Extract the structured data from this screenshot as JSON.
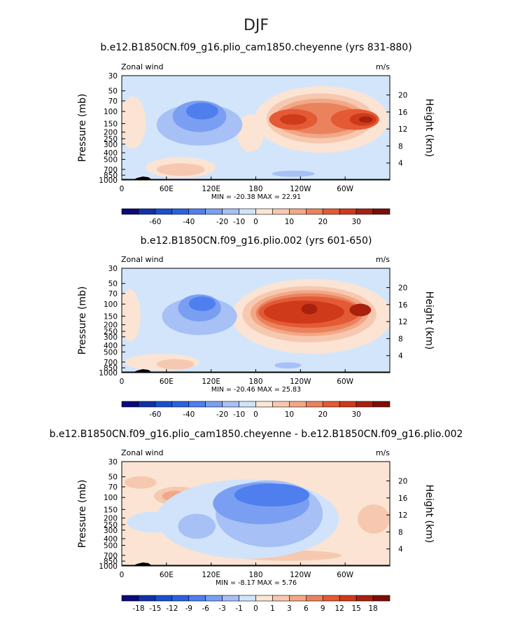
{
  "figure": {
    "season_title": "DJF"
  },
  "chart_data": [
    {
      "type": "heatmap",
      "title": "b.e12.B1850CN.f09_g16.plio_cam1850.cheyenne (yrs 831-880)",
      "variable_label": "Zonal wind",
      "units_label": "m/s",
      "ylabel": "Pressure (mb)",
      "y2label": "Height (km)",
      "x_ticks": [
        "0",
        "60E",
        "120E",
        "180",
        "120W",
        "60W"
      ],
      "x_tick_lon": [
        0,
        60,
        120,
        180,
        240,
        300
      ],
      "xlim": [
        0,
        360
      ],
      "y_ticks": [
        "30",
        "50",
        "70",
        "100",
        "150",
        "200",
        "250",
        "300",
        "400",
        "500",
        "700",
        "850",
        "1000"
      ],
      "y_tick_p": [
        30,
        50,
        70,
        100,
        150,
        200,
        250,
        300,
        400,
        500,
        700,
        850,
        1000
      ],
      "ylim_mb": [
        1000,
        30
      ],
      "y_log": true,
      "y2_ticks": [
        "20",
        "16",
        "12",
        "8",
        "4"
      ],
      "y2_tick_km": [
        20,
        16,
        12,
        8,
        4
      ],
      "min_max_text": "MIN =  -20.38   MAX =   22.91",
      "colorbar_ticks": [
        "-60",
        "-40",
        "-20",
        "-10",
        "0",
        "10",
        "20",
        "30"
      ],
      "levels": [
        -70,
        -60,
        -50,
        -40,
        -30,
        -20,
        -15,
        -10,
        -5,
        0,
        5,
        10,
        15,
        20,
        25,
        30,
        35
      ]
    },
    {
      "type": "heatmap",
      "title": "b.e12.B1850CN.f09_g16.plio.002 (yrs 601-650)",
      "variable_label": "Zonal wind",
      "units_label": "m/s",
      "ylabel": "Pressure (mb)",
      "y2label": "Height (km)",
      "x_ticks": [
        "0",
        "60E",
        "120E",
        "180",
        "120W",
        "60W"
      ],
      "x_tick_lon": [
        0,
        60,
        120,
        180,
        240,
        300
      ],
      "xlim": [
        0,
        360
      ],
      "y_ticks": [
        "30",
        "50",
        "70",
        "100",
        "150",
        "200",
        "250",
        "300",
        "400",
        "500",
        "700",
        "850",
        "1000"
      ],
      "y_tick_p": [
        30,
        50,
        70,
        100,
        150,
        200,
        250,
        300,
        400,
        500,
        700,
        850,
        1000
      ],
      "ylim_mb": [
        1000,
        30
      ],
      "y_log": true,
      "y2_ticks": [
        "20",
        "16",
        "12",
        "8",
        "4"
      ],
      "y2_tick_km": [
        20,
        16,
        12,
        8,
        4
      ],
      "min_max_text": "MIN =  -20.46   MAX =   25.83",
      "colorbar_ticks": [
        "-60",
        "-40",
        "-20",
        "-10",
        "0",
        "10",
        "20",
        "30"
      ],
      "levels": [
        -70,
        -60,
        -50,
        -40,
        -30,
        -20,
        -15,
        -10,
        -5,
        0,
        5,
        10,
        15,
        20,
        25,
        30,
        35
      ]
    },
    {
      "type": "heatmap",
      "title": "b.e12.B1850CN.f09_g16.plio_cam1850.cheyenne - b.e12.B1850CN.f09_g16.plio.002",
      "variable_label": "Zonal wind",
      "units_label": "m/s",
      "ylabel": "Pressure (mb)",
      "y2label": "Height (km)",
      "x_ticks": [
        "0",
        "60E",
        "120E",
        "180",
        "120W",
        "60W"
      ],
      "x_tick_lon": [
        0,
        60,
        120,
        180,
        240,
        300
      ],
      "xlim": [
        0,
        360
      ],
      "y_ticks": [
        "30",
        "50",
        "70",
        "100",
        "150",
        "200",
        "250",
        "300",
        "400",
        "500",
        "700",
        "850",
        "1000"
      ],
      "y_tick_p": [
        30,
        50,
        70,
        100,
        150,
        200,
        250,
        300,
        400,
        500,
        700,
        850,
        1000
      ],
      "ylim_mb": [
        1000,
        30
      ],
      "y_log": true,
      "y2_ticks": [
        "20",
        "16",
        "12",
        "8",
        "4"
      ],
      "y2_tick_km": [
        20,
        16,
        12,
        8,
        4
      ],
      "min_max_text": "MIN =    -8.17   MAX =     5.76",
      "colorbar_ticks": [
        "-18",
        "-15",
        "-12",
        "-9",
        "-6",
        "-3",
        "-1",
        "0",
        "1",
        "3",
        "6",
        "9",
        "12",
        "15",
        "18"
      ],
      "levels": [
        -21,
        -18,
        -15,
        -12,
        -9,
        -6,
        -3,
        -1,
        0,
        1,
        3,
        6,
        9,
        12,
        15,
        18,
        21
      ]
    }
  ],
  "colors": {
    "colorbar": [
      "#0a0a78",
      "#1131a8",
      "#1a4fd0",
      "#2a62e2",
      "#4f7fee",
      "#7a9ff2",
      "#a7c0f5",
      "#d0e3fb",
      "#fbe6d6",
      "#f7c8b0",
      "#f2a886",
      "#eb825e",
      "#e35a35",
      "#cf3a1a",
      "#a8200e",
      "#7a0f08"
    ],
    "fields": {
      "top": {
        "base": "#d3e5fa",
        "pos": [
          "#fbe4d4",
          "#f7c8b0",
          "#f2a886",
          "#eb825e",
          "#e35a35",
          "#cf3a1a",
          "#a8200e"
        ],
        "neg": [
          "#a7c0f5",
          "#7a9ff2",
          "#4f7fee"
        ]
      },
      "middle": {
        "base": "#d3e5fa",
        "pos": [
          "#fbe4d4",
          "#f7c8b0",
          "#f2a886",
          "#eb825e",
          "#e35a35",
          "#cf3a1a",
          "#a8200e"
        ],
        "neg": [
          "#a7c0f5",
          "#7a9ff2",
          "#4f7fee"
        ]
      },
      "bottom": {
        "base": "#fbe4d4",
        "pos": [
          "#f7c8b0",
          "#f2a886"
        ],
        "neg": [
          "#d0e3fb",
          "#a7c0f5",
          "#7a9ff2",
          "#4f7fee"
        ]
      }
    },
    "topography": "#000000"
  }
}
